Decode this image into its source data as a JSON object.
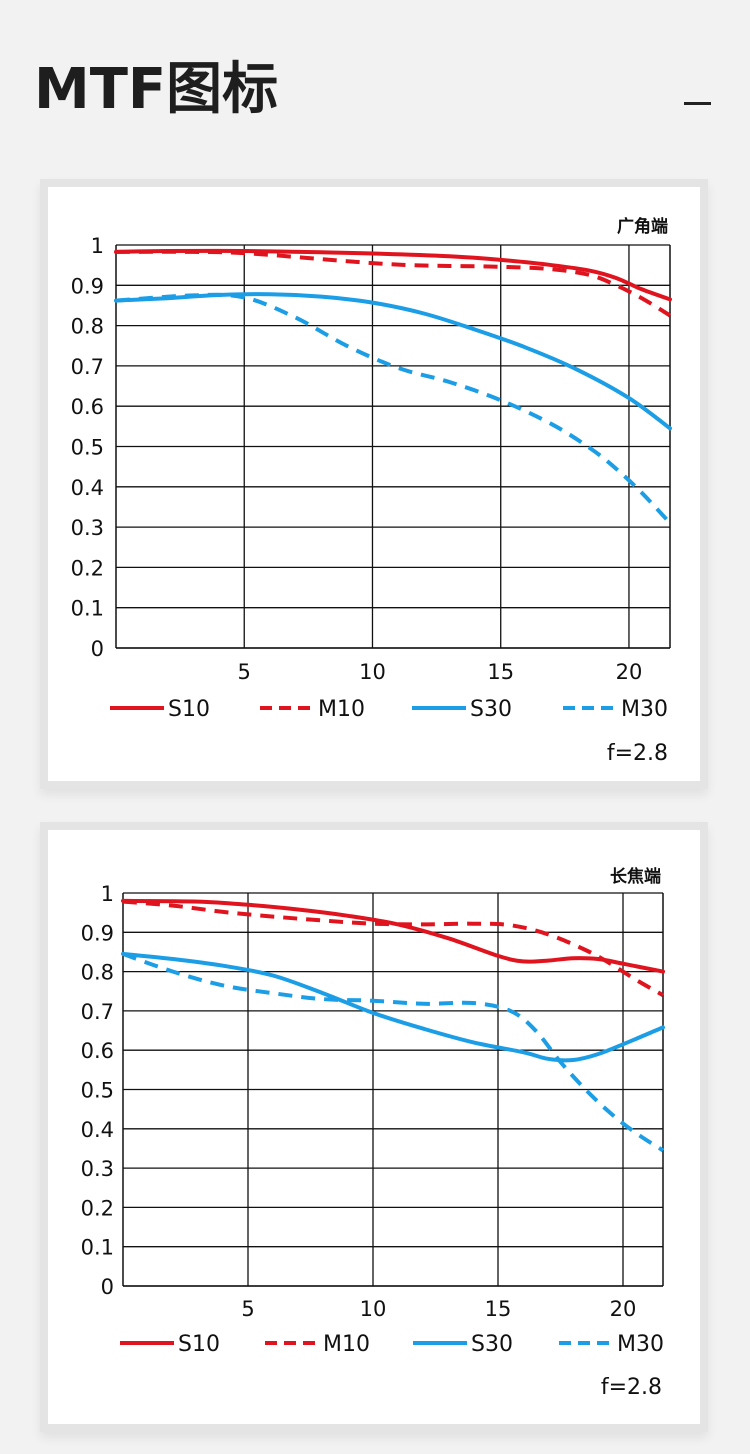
{
  "page": {
    "title": "MTF图标",
    "minimize_icon": "minus-icon"
  },
  "colors": {
    "red": "#e0141e",
    "blue": "#1c9ee6",
    "grid": "#111111",
    "background": "#f2f2f2",
    "card": "#ffffff"
  },
  "chart_data": [
    {
      "type": "line",
      "title": "广角端",
      "xlabel": "",
      "ylabel": "",
      "xlim": [
        0,
        21.6
      ],
      "ylim": [
        0,
        1
      ],
      "xticks": [
        "5",
        "10",
        "15",
        "20"
      ],
      "yticks": [
        "0",
        "0.1",
        "0.2",
        "0.3",
        "0.4",
        "0.5",
        "0.6",
        "0.7",
        "0.8",
        "0.9",
        "1"
      ],
      "grid": true,
      "legend_position": "bottom",
      "annotation": "f=2.8",
      "series": [
        {
          "name": "S10",
          "color": "#e0141e",
          "style": "solid",
          "x": [
            0,
            2,
            5,
            8,
            10,
            13,
            15,
            17,
            18.5,
            19.5,
            20.5,
            21.6
          ],
          "y": [
            0.983,
            0.985,
            0.985,
            0.982,
            0.979,
            0.972,
            0.963,
            0.95,
            0.936,
            0.918,
            0.89,
            0.865
          ]
        },
        {
          "name": "M10",
          "color": "#e0141e",
          "style": "dashed",
          "x": [
            0,
            3,
            5,
            8,
            10,
            11.5,
            13,
            15,
            17,
            18.5,
            19.5,
            20.5,
            21.6
          ],
          "y": [
            0.983,
            0.983,
            0.98,
            0.965,
            0.955,
            0.95,
            0.948,
            0.946,
            0.94,
            0.925,
            0.9,
            0.868,
            0.825
          ]
        },
        {
          "name": "S30",
          "color": "#1c9ee6",
          "style": "solid",
          "x": [
            0,
            2,
            4,
            6,
            8,
            10,
            12,
            14,
            16,
            18,
            20,
            21.6
          ],
          "y": [
            0.862,
            0.868,
            0.876,
            0.878,
            0.872,
            0.857,
            0.83,
            0.79,
            0.745,
            0.69,
            0.62,
            0.545
          ]
        },
        {
          "name": "M30",
          "color": "#1c9ee6",
          "style": "dashed",
          "x": [
            0,
            3,
            5,
            7,
            9,
            11,
            13,
            15,
            17,
            18.5,
            19.5,
            20.5,
            21.6
          ],
          "y": [
            0.862,
            0.875,
            0.87,
            0.82,
            0.75,
            0.695,
            0.66,
            0.615,
            0.555,
            0.495,
            0.445,
            0.385,
            0.31
          ]
        }
      ]
    },
    {
      "type": "line",
      "title": "长焦端",
      "xlabel": "",
      "ylabel": "",
      "xlim": [
        0,
        21.6
      ],
      "ylim": [
        0,
        1
      ],
      "xticks": [
        "5",
        "10",
        "15",
        "20"
      ],
      "yticks": [
        "0",
        "0.1",
        "0.2",
        "0.3",
        "0.4",
        "0.5",
        "0.6",
        "0.7",
        "0.8",
        "0.9",
        "1"
      ],
      "grid": true,
      "legend_position": "bottom",
      "annotation": "f=2.8",
      "series": [
        {
          "name": "S10",
          "color": "#e0141e",
          "style": "solid",
          "x": [
            0,
            3,
            5,
            7,
            9,
            11,
            13,
            15,
            16,
            17,
            18,
            19,
            20,
            21.6
          ],
          "y": [
            0.98,
            0.978,
            0.97,
            0.958,
            0.942,
            0.92,
            0.885,
            0.84,
            0.826,
            0.828,
            0.834,
            0.832,
            0.82,
            0.8
          ]
        },
        {
          "name": "M10",
          "color": "#e0141e",
          "style": "dashed",
          "x": [
            0,
            2,
            4,
            6,
            8,
            10,
            12,
            14,
            15.5,
            17,
            18.5,
            19.5,
            20.5,
            21.6
          ],
          "y": [
            0.978,
            0.968,
            0.952,
            0.94,
            0.93,
            0.922,
            0.92,
            0.922,
            0.918,
            0.895,
            0.855,
            0.82,
            0.78,
            0.74
          ]
        },
        {
          "name": "S30",
          "color": "#1c9ee6",
          "style": "solid",
          "x": [
            0,
            2,
            4,
            6,
            8,
            10,
            12,
            14,
            16,
            17,
            18,
            19,
            20,
            21.6
          ],
          "y": [
            0.845,
            0.832,
            0.815,
            0.79,
            0.745,
            0.695,
            0.655,
            0.62,
            0.595,
            0.578,
            0.575,
            0.59,
            0.615,
            0.658
          ]
        },
        {
          "name": "M30",
          "color": "#1c9ee6",
          "style": "dashed",
          "x": [
            0,
            2,
            4,
            6,
            8,
            10,
            12,
            14,
            15.5,
            16.5,
            17.5,
            18.5,
            19.5,
            20.5,
            21.6
          ],
          "y": [
            0.845,
            0.8,
            0.765,
            0.745,
            0.73,
            0.726,
            0.718,
            0.72,
            0.7,
            0.65,
            0.57,
            0.5,
            0.44,
            0.39,
            0.345
          ]
        }
      ]
    }
  ]
}
